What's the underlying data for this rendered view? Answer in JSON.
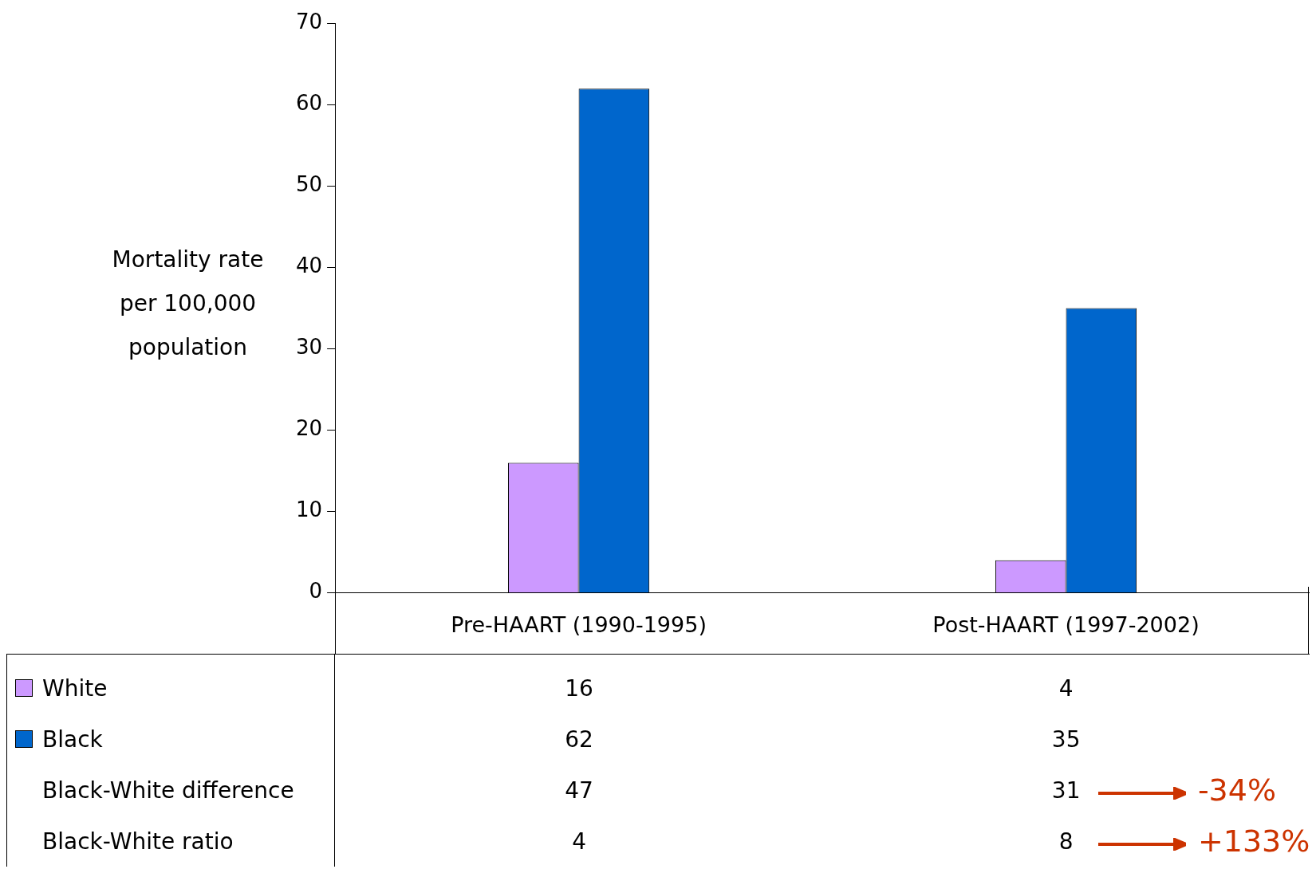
{
  "chart_data": {
    "type": "bar",
    "ylabel": "Mortality rate per 100,000 population",
    "categories": [
      "Pre-HAART (1990-1995)",
      "Post-HAART (1997-2002)"
    ],
    "series": [
      {
        "name": "White",
        "color": "#cc99ff",
        "values": [
          16,
          4
        ]
      },
      {
        "name": "Black",
        "color": "#0066cc",
        "values": [
          62,
          35
        ]
      }
    ],
    "ylim": [
      0,
      70
    ],
    "yticks": [
      0,
      10,
      20,
      30,
      40,
      50,
      60,
      70
    ],
    "grid": false,
    "legend": "bottom",
    "data_labels": true,
    "annotations": [
      "Black-White difference",
      "47",
      "31",
      "Black-White ratio",
      "4",
      "8",
      "-34%",
      "+133%"
    ]
  }
}
